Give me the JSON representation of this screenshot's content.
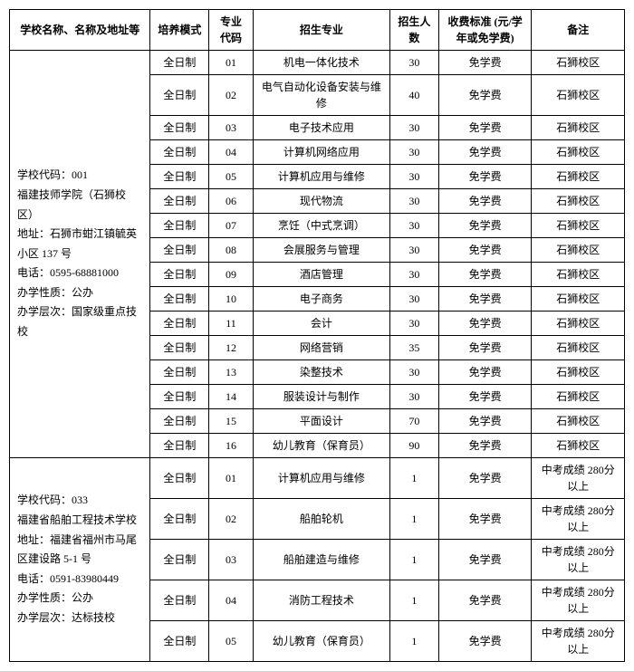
{
  "headers": {
    "h1": "学校名称、名称及地址等",
    "h2": "培养模式",
    "h3": "专业代码",
    "h4": "招生专业",
    "h5": "招生人数",
    "h6": "收费标准 (元/学年或免学费)",
    "h7": "备注"
  },
  "school1": {
    "info": "学校代码：001\n福建技师学院（石狮校区）\n地址：石狮市蚶江镇毓英小区 137 号\n电话：0595-68881000\n办学性质：公办\n办学层次：国家级重点技校",
    "rows": [
      {
        "mode": "全日制",
        "code": "01",
        "major": "机电一体化技术",
        "num": "30",
        "fee": "免学费",
        "note": "石狮校区"
      },
      {
        "mode": "全日制",
        "code": "02",
        "major": "电气自动化设备安装与维修",
        "num": "40",
        "fee": "免学费",
        "note": "石狮校区"
      },
      {
        "mode": "全日制",
        "code": "03",
        "major": "电子技术应用",
        "num": "30",
        "fee": "免学费",
        "note": "石狮校区"
      },
      {
        "mode": "全日制",
        "code": "04",
        "major": "计算机网络应用",
        "num": "30",
        "fee": "免学费",
        "note": "石狮校区"
      },
      {
        "mode": "全日制",
        "code": "05",
        "major": "计算机应用与维修",
        "num": "30",
        "fee": "免学费",
        "note": "石狮校区"
      },
      {
        "mode": "全日制",
        "code": "06",
        "major": "现代物流",
        "num": "30",
        "fee": "免学费",
        "note": "石狮校区"
      },
      {
        "mode": "全日制",
        "code": "07",
        "major": "烹饪（中式烹调）",
        "num": "30",
        "fee": "免学费",
        "note": "石狮校区"
      },
      {
        "mode": "全日制",
        "code": "08",
        "major": "会展服务与管理",
        "num": "30",
        "fee": "免学费",
        "note": "石狮校区"
      },
      {
        "mode": "全日制",
        "code": "09",
        "major": "酒店管理",
        "num": "30",
        "fee": "免学费",
        "note": "石狮校区"
      },
      {
        "mode": "全日制",
        "code": "10",
        "major": "电子商务",
        "num": "30",
        "fee": "免学费",
        "note": "石狮校区"
      },
      {
        "mode": "全日制",
        "code": "11",
        "major": "会计",
        "num": "30",
        "fee": "免学费",
        "note": "石狮校区"
      },
      {
        "mode": "全日制",
        "code": "12",
        "major": "网络营销",
        "num": "35",
        "fee": "免学费",
        "note": "石狮校区"
      },
      {
        "mode": "全日制",
        "code": "13",
        "major": "染整技术",
        "num": "30",
        "fee": "免学费",
        "note": "石狮校区"
      },
      {
        "mode": "全日制",
        "code": "14",
        "major": "服装设计与制作",
        "num": "30",
        "fee": "免学费",
        "note": "石狮校区"
      },
      {
        "mode": "全日制",
        "code": "15",
        "major": "平面设计",
        "num": "70",
        "fee": "免学费",
        "note": "石狮校区"
      },
      {
        "mode": "全日制",
        "code": "16",
        "major": "幼儿教育（保育员）",
        "num": "90",
        "fee": "免学费",
        "note": "石狮校区"
      }
    ]
  },
  "school2": {
    "info": "学校代码：033\n福建省船舶工程技术学校\n地址：福建省福州市马尾区建设路 5-1 号\n电话：0591-83980449\n办学性质：公办\n办学层次：达标技校",
    "rows": [
      {
        "mode": "全日制",
        "code": "01",
        "major": "计算机应用与维修",
        "num": "1",
        "fee": "免学费",
        "note": "中考成绩 280分以上"
      },
      {
        "mode": "全日制",
        "code": "02",
        "major": "船舶轮机",
        "num": "1",
        "fee": "免学费",
        "note": "中考成绩 280分以上"
      },
      {
        "mode": "全日制",
        "code": "03",
        "major": "船舶建造与维修",
        "num": "1",
        "fee": "免学费",
        "note": "中考成绩 280分以上"
      },
      {
        "mode": "全日制",
        "code": "04",
        "major": "消防工程技术",
        "num": "1",
        "fee": "免学费",
        "note": "中考成绩 280分以上"
      },
      {
        "mode": "全日制",
        "code": "05",
        "major": "幼儿教育（保育员）",
        "num": "1",
        "fee": "免学费",
        "note": "中考成绩 280分以上"
      }
    ]
  }
}
